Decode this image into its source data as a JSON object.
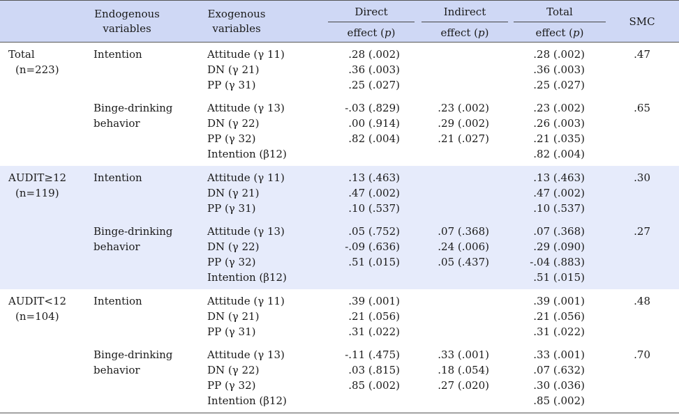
{
  "header": {
    "endogenous": "Endogenous\nvariables",
    "exogenous": "Exogenous\nvariables",
    "direct": "Direct",
    "indirect": "Indirect",
    "total": "Total",
    "effect_p": "effect (p)",
    "smc": "SMC"
  },
  "groups": [
    {
      "label": "Total",
      "n": "(n=223)",
      "blocks": [
        {
          "endogenous": "Intention",
          "rows": [
            {
              "exo": "Attitude (γ 11)",
              "direct": ".28 (.002)",
              "indirect": "",
              "total": ".28 (.002)"
            },
            {
              "exo": "DN (γ 21)",
              "direct": ".36 (.003)",
              "indirect": "",
              "total": ".36 (.003)"
            },
            {
              "exo": "PP (γ 31)",
              "direct": ".25 (.027)",
              "indirect": "",
              "total": ".25 (.027)"
            }
          ],
          "smc": ".47"
        },
        {
          "endogenous": "Binge-drinking\nbehavior",
          "rows": [
            {
              "exo": "Attitude (γ 13)",
              "direct": "-.03 (.829)",
              "indirect": ".23 (.002)",
              "total": ".23 (.002)"
            },
            {
              "exo": "DN (γ 22)",
              "direct": ".00 (.914)",
              "indirect": ".29 (.002)",
              "total": ".26 (.003)"
            },
            {
              "exo": "PP (γ 32)",
              "direct": ".82 (.004)",
              "indirect": ".21 (.027)",
              "total": ".21 (.035)"
            },
            {
              "exo": "Intention (β12)",
              "direct": "",
              "indirect": "",
              "total": ".82 (.004)"
            }
          ],
          "smc": ".65"
        }
      ]
    },
    {
      "label": "AUDIT≥12",
      "n": "(n=119)",
      "blocks": [
        {
          "endogenous": "Intention",
          "rows": [
            {
              "exo": "Attitude (γ 11)",
              "direct": ".13 (.463)",
              "indirect": "",
              "total": ".13 (.463)"
            },
            {
              "exo": "DN (γ 21)",
              "direct": ".47 (.002)",
              "indirect": "",
              "total": ".47 (.002)"
            },
            {
              "exo": "PP (γ 31)",
              "direct": ".10 (.537)",
              "indirect": "",
              "total": ".10 (.537)"
            }
          ],
          "smc": ".30"
        },
        {
          "endogenous": "Binge-drinking\nbehavior",
          "rows": [
            {
              "exo": "Attitude (γ 13)",
              "direct": ".05 (.752)",
              "indirect": ".07 (.368)",
              "total": ".07 (.368)"
            },
            {
              "exo": "DN (γ 22)",
              "direct": "-.09 (.636)",
              "indirect": ".24 (.006)",
              "total": ".29 (.090)"
            },
            {
              "exo": "PP (γ 32)",
              "direct": ".51 (.015)",
              "indirect": ".05 (.437)",
              "total": "-.04 (.883)"
            },
            {
              "exo": "Intention (β12)",
              "direct": "",
              "indirect": "",
              "total": ".51 (.015)"
            }
          ],
          "smc": ".27"
        }
      ]
    },
    {
      "label": "AUDIT<12",
      "n": "(n=104)",
      "blocks": [
        {
          "endogenous": "Intention",
          "rows": [
            {
              "exo": "Attitude (γ 11)",
              "direct": ".39 (.001)",
              "indirect": "",
              "total": ".39 (.001)"
            },
            {
              "exo": "DN (γ 21)",
              "direct": ".21 (.056)",
              "indirect": "",
              "total": ".21 (.056)"
            },
            {
              "exo": "PP (γ 31)",
              "direct": ".31 (.022)",
              "indirect": "",
              "total": ".31 (.022)"
            }
          ],
          "smc": ".48"
        },
        {
          "endogenous": "Binge-drinking\nbehavior",
          "rows": [
            {
              "exo": "Attitude (γ 13)",
              "direct": "-.11 (.475)",
              "indirect": ".33 (.001)",
              "total": ".33 (.001)"
            },
            {
              "exo": "DN (γ 22)",
              "direct": ".03 (.815)",
              "indirect": ".18 (.054)",
              "total": ".07 (.632)"
            },
            {
              "exo": "PP (γ 32)",
              "direct": ".85 (.002)",
              "indirect": ".27 (.020)",
              "total": ".30 (.036)"
            },
            {
              "exo": "Intention (β12)",
              "direct": "",
              "indirect": "",
              "total": ".85 (.002)"
            }
          ],
          "smc": ".70"
        }
      ]
    }
  ]
}
